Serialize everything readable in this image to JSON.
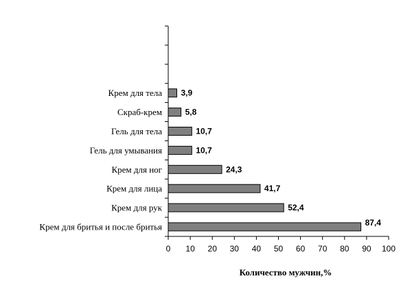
{
  "chart_data": {
    "type": "bar",
    "orientation": "horizontal",
    "categories": [
      "Крем для бритья и после бритья",
      "Крем для рук",
      "Крем для лица",
      "Крем для ног",
      "Гель для умывания",
      "Гель для тела",
      "Скраб-крем",
      "Крем для тела"
    ],
    "values": [
      87.4,
      52.4,
      41.7,
      24.3,
      10.7,
      10.7,
      5.8,
      3.9
    ],
    "value_labels": [
      "87,4",
      "52,4",
      "41,7",
      "24,3",
      "10,7",
      "10,7",
      "5,8",
      "3,9"
    ],
    "xlabel": "Количество мужчин,%",
    "xlim": [
      0,
      100
    ],
    "xticks": [
      0,
      10,
      20,
      30,
      40,
      50,
      60,
      70,
      80,
      90,
      100
    ],
    "empty_slots_above": 3,
    "grid": false,
    "bar_color": "#7f7f7f",
    "bar_edge_color": "#000000"
  }
}
